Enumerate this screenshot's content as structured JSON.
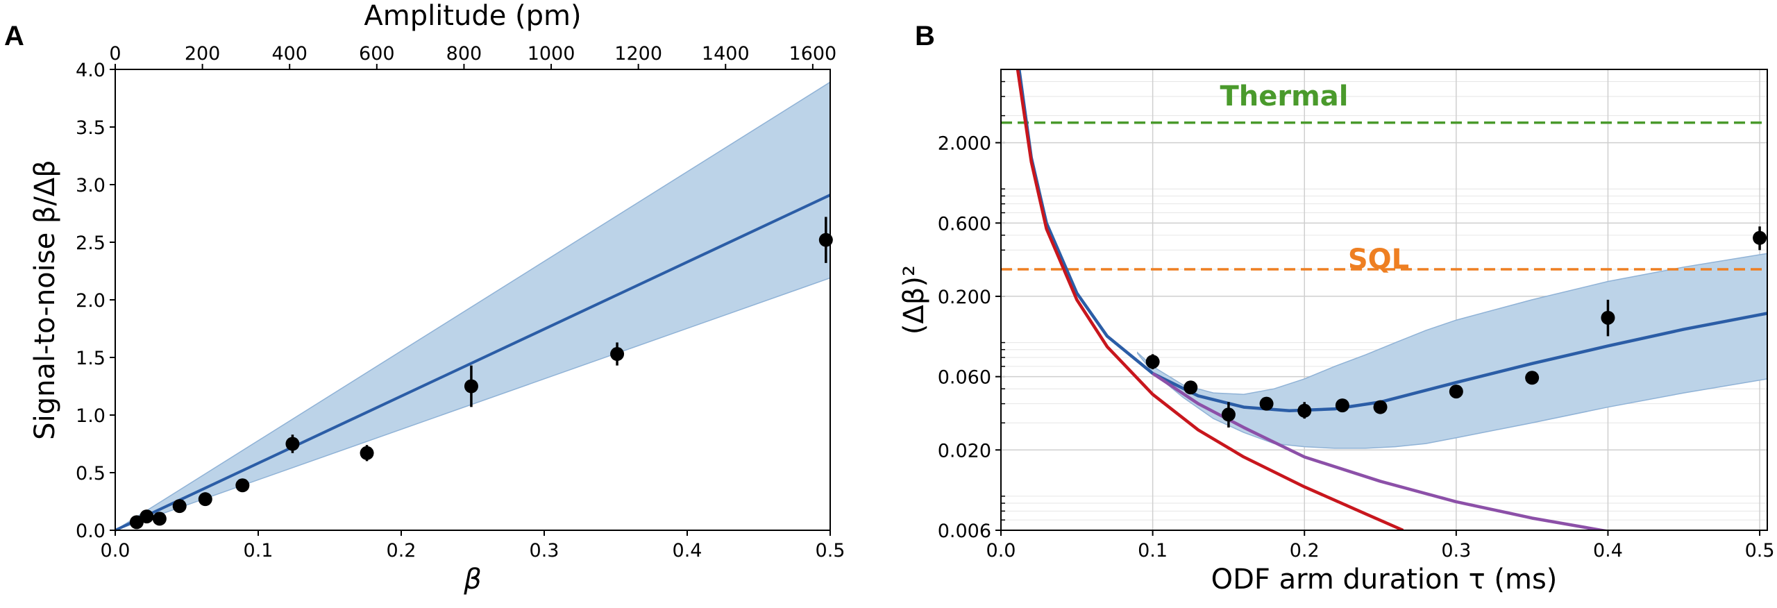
{
  "panel_labels": [
    "A",
    "B"
  ],
  "chart_data": [
    {
      "type": "scatter",
      "panel": "A",
      "xlabel": "β",
      "ylabel": "Signal-to-noise β/Δβ",
      "top_xlabel": "Amplitude (pm)",
      "xlim": [
        0,
        0.5
      ],
      "ylim": [
        0,
        4.0
      ],
      "top_xlim": [
        0,
        1640
      ],
      "xticks": [
        "0.0",
        "0.1",
        "0.2",
        "0.3",
        "0.4",
        "0.5"
      ],
      "yticks": [
        "0.0",
        "0.5",
        "1.0",
        "1.5",
        "2.0",
        "2.5",
        "3.0",
        "3.5",
        "4.0"
      ],
      "top_xticks": [
        "0",
        "200",
        "400",
        "600",
        "800",
        "1000",
        "1200",
        "1400",
        "1600"
      ],
      "grid": false,
      "colors": {
        "points": "#000000",
        "fit": "#2b5da6",
        "band": "#bcd3e8",
        "band_edge": "#8fb2d6"
      },
      "series": [
        {
          "kind": "points",
          "x": [
            0.015,
            0.022,
            0.031,
            0.045,
            0.063,
            0.089,
            0.124,
            0.176,
            0.249,
            0.351,
            0.497
          ],
          "y": [
            0.07,
            0.12,
            0.1,
            0.21,
            0.27,
            0.39,
            0.75,
            0.67,
            1.25,
            1.53,
            2.52
          ],
          "yerr": [
            0.02,
            0.03,
            0.03,
            0.03,
            0.03,
            0.04,
            0.08,
            0.07,
            0.18,
            0.1,
            0.2
          ]
        },
        {
          "kind": "line",
          "x": [
            0,
            0.5
          ],
          "y": [
            0,
            2.91
          ]
        },
        {
          "kind": "band",
          "x": [
            0,
            0.5
          ],
          "y_low": [
            0,
            2.19
          ],
          "y_high": [
            0,
            3.89
          ]
        }
      ]
    },
    {
      "type": "scatter",
      "panel": "B",
      "xlabel": "ODF arm duration τ (ms)",
      "ylabel": "(Δβ)²",
      "xlim": [
        0,
        0.505
      ],
      "ylim": [
        0.006,
        6.0
      ],
      "yscale": "log",
      "xticks": [
        "0.0",
        "0.1",
        "0.2",
        "0.3",
        "0.4",
        "0.5"
      ],
      "yticks": [
        "0.006",
        "0.020",
        "0.060",
        "0.200",
        "0.600",
        "2.000"
      ],
      "grid": true,
      "annotations": [
        {
          "text": "Thermal",
          "color": "#4a9a2c"
        },
        {
          "text": "SQL",
          "color": "#ee7f22"
        }
      ],
      "colors": {
        "thermal": "#4a9a2c",
        "sql": "#ee7f22",
        "fit": "#2b5da6",
        "band": "#bcd3e8",
        "band_edge": "#8fb2d6",
        "red": "#c8161d",
        "purple": "#8c50a8",
        "points": "#000000"
      },
      "series": [
        {
          "kind": "hline",
          "name": "Thermal",
          "y": 2.7
        },
        {
          "kind": "hline",
          "name": "SQL",
          "y": 0.3
        },
        {
          "kind": "points",
          "x": [
            0.1,
            0.125,
            0.15,
            0.175,
            0.2,
            0.225,
            0.25,
            0.3,
            0.35,
            0.4,
            0.5
          ],
          "y": [
            0.075,
            0.051,
            0.034,
            0.04,
            0.036,
            0.039,
            0.038,
            0.048,
            0.059,
            0.145,
            0.48
          ],
          "yerr_low": [
            0.067,
            0.047,
            0.028,
            0.037,
            0.032,
            0.036,
            0.035,
            0.046,
            0.057,
            0.11,
            0.4
          ],
          "yerr_high": [
            0.084,
            0.055,
            0.041,
            0.043,
            0.041,
            0.042,
            0.042,
            0.05,
            0.061,
            0.19,
            0.57
          ]
        },
        {
          "kind": "line",
          "color": "#2b5da6",
          "x": [
            0.012,
            0.02,
            0.03,
            0.05,
            0.07,
            0.1,
            0.13,
            0.16,
            0.19,
            0.22,
            0.25,
            0.3,
            0.35,
            0.4,
            0.45,
            0.505
          ],
          "y": [
            6.0,
            1.6,
            0.6,
            0.21,
            0.11,
            0.063,
            0.045,
            0.038,
            0.036,
            0.037,
            0.041,
            0.055,
            0.073,
            0.095,
            0.122,
            0.155
          ]
        },
        {
          "kind": "line",
          "color": "#c8161d",
          "x": [
            0.011,
            0.02,
            0.03,
            0.05,
            0.07,
            0.1,
            0.13,
            0.16,
            0.2,
            0.24,
            0.265
          ],
          "y": [
            6.0,
            1.5,
            0.55,
            0.19,
            0.094,
            0.046,
            0.027,
            0.018,
            0.0115,
            0.0077,
            0.006
          ]
        },
        {
          "kind": "line",
          "color": "#8c50a8",
          "x": [
            0.1,
            0.13,
            0.16,
            0.2,
            0.25,
            0.3,
            0.35,
            0.4
          ],
          "y": [
            0.063,
            0.04,
            0.028,
            0.018,
            0.0125,
            0.0092,
            0.0072,
            0.0059
          ]
        },
        {
          "kind": "band",
          "x": [
            0.09,
            0.1,
            0.12,
            0.14,
            0.16,
            0.18,
            0.2,
            0.22,
            0.24,
            0.26,
            0.28,
            0.3,
            0.35,
            0.4,
            0.45,
            0.505
          ],
          "y_low": [
            0.085,
            0.064,
            0.044,
            0.032,
            0.026,
            0.022,
            0.021,
            0.0205,
            0.0205,
            0.021,
            0.022,
            0.024,
            0.03,
            0.038,
            0.047,
            0.058
          ],
          "y_high": [
            0.086,
            0.07,
            0.053,
            0.047,
            0.046,
            0.05,
            0.058,
            0.07,
            0.083,
            0.1,
            0.12,
            0.14,
            0.19,
            0.25,
            0.31,
            0.38
          ]
        }
      ]
    }
  ]
}
